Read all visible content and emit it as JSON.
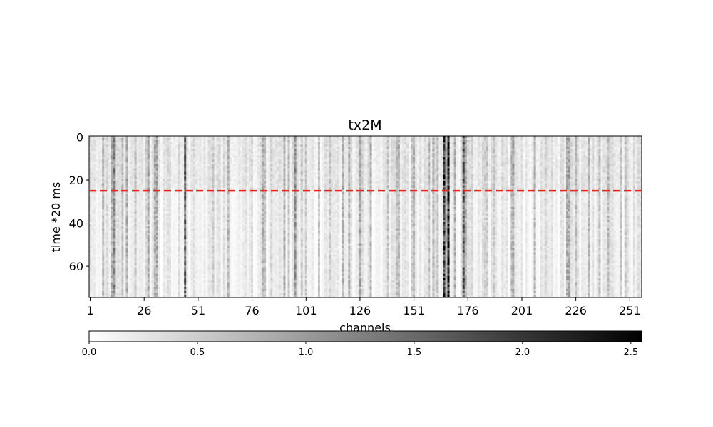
{
  "chart_data": {
    "type": "heatmap",
    "title": "tx2M",
    "xlabel": "channels",
    "ylabel": "time *20 ms",
    "x_ticks": [
      1,
      26,
      51,
      76,
      101,
      126,
      151,
      176,
      201,
      226,
      251
    ],
    "y_ticks": [
      0,
      20,
      40,
      60
    ],
    "x_range": [
      1,
      256
    ],
    "y_range": [
      0,
      74
    ],
    "n_channels": 256,
    "n_timesteps": 75,
    "colormap": "gray_r",
    "color_range": [
      0.0,
      2.55
    ],
    "colorbar_ticks": [
      0.0,
      0.5,
      1.0,
      1.5,
      2.0,
      2.5
    ],
    "colorbar_orientation": "horizontal",
    "threshold_line": {
      "y": 25,
      "color": "#e8231b",
      "style": "dashed"
    },
    "dark_channels": [
      {
        "channel": 12,
        "level": 1.2
      },
      {
        "channel": 45,
        "level": 1.6
      },
      {
        "channel": 96,
        "level": 1.1
      },
      {
        "channel": 165,
        "level": 2.1
      },
      {
        "channel": 167,
        "level": 2.4
      },
      {
        "channel": 174,
        "level": 1.7
      },
      {
        "channel": 126,
        "level": 0.9
      }
    ]
  }
}
